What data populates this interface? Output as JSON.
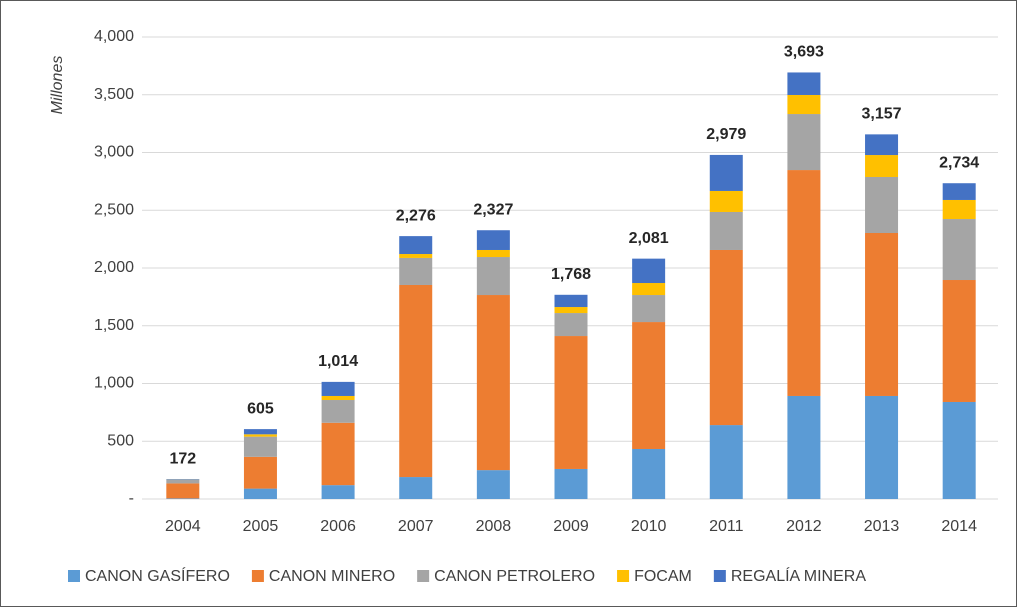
{
  "chart_data": {
    "type": "stacked_bar",
    "y_axis_label": "Millones",
    "categories": [
      "2004",
      "2005",
      "2006",
      "2007",
      "2008",
      "2009",
      "2010",
      "2011",
      "2012",
      "2013",
      "2014"
    ],
    "series": [
      {
        "name": "CANON GASÍFERO",
        "color": "#5b9bd5",
        "values": [
          5,
          90,
          120,
          190,
          250,
          260,
          433,
          640,
          892,
          892,
          840
        ]
      },
      {
        "name": "CANON MINERO",
        "color": "#ed7d31",
        "values": [
          130,
          275,
          540,
          1663,
          1516,
          1151,
          1099,
          1516,
          1956,
          1411,
          1056
        ]
      },
      {
        "name": "CANON PETROLERO",
        "color": "#a5a5a5",
        "values": [
          30,
          175,
          197,
          234,
          329,
          199,
          234,
          329,
          485,
          485,
          528
        ]
      },
      {
        "name": "FOCAM",
        "color": "#ffc000",
        "values": [
          2,
          20,
          35,
          34,
          61,
          52,
          104,
          182,
          165,
          190,
          165
        ]
      },
      {
        "name": "REGALÍA MINERA",
        "color": "#4472c4",
        "values": [
          5,
          45,
          122,
          155,
          171,
          106,
          211,
          312,
          195,
          179,
          145
        ]
      }
    ],
    "totals": {
      "values": [
        172,
        605,
        1014,
        2276,
        2327,
        1768,
        2081,
        2979,
        3693,
        3157,
        2734
      ],
      "value_labels": [
        "172",
        "605",
        "1,014",
        "2,276",
        "2,327",
        "1,768",
        "2,081",
        "2,979",
        "3,693",
        "3,157",
        "2,734"
      ]
    },
    "ylim": [
      0,
      4000
    ],
    "yticks": [
      {
        "value": 0,
        "label": "-"
      },
      500,
      {
        "value": 1000,
        "label": "1,000"
      },
      {
        "value": 1500,
        "label": "1,500"
      },
      {
        "value": 2000,
        "label": "2,000"
      },
      {
        "value": 2500,
        "label": "2,500"
      },
      {
        "value": 3000,
        "label": "3,000"
      },
      {
        "value": 3500,
        "label": "3,500"
      },
      {
        "value": 4000,
        "label": "4,000"
      }
    ],
    "grid": true,
    "legend": "bottom"
  }
}
